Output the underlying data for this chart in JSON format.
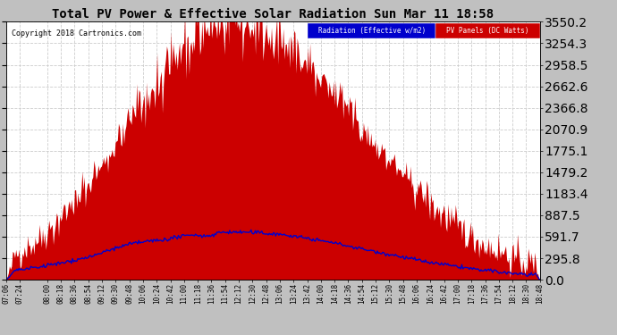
{
  "title": "Total PV Power & Effective Solar Radiation Sun Mar 11 18:58",
  "copyright": "Copyright 2018 Cartronics.com",
  "legend_radiation": "Radiation (Effective w/m2)",
  "legend_pv": "PV Panels (DC Watts)",
  "yticks": [
    0.0,
    295.8,
    591.7,
    887.5,
    1183.4,
    1479.2,
    1775.1,
    2070.9,
    2366.8,
    2662.6,
    2958.5,
    3254.3,
    3550.2
  ],
  "xtick_labels": [
    "07:06",
    "07:24",
    "08:00",
    "08:18",
    "08:36",
    "08:54",
    "09:12",
    "09:30",
    "09:48",
    "10:06",
    "10:24",
    "10:42",
    "11:00",
    "11:18",
    "11:36",
    "11:54",
    "12:12",
    "12:30",
    "12:48",
    "13:06",
    "13:24",
    "13:42",
    "14:00",
    "14:18",
    "14:36",
    "14:54",
    "15:12",
    "15:30",
    "15:48",
    "16:06",
    "16:24",
    "16:42",
    "17:00",
    "17:18",
    "17:36",
    "17:54",
    "18:12",
    "18:30",
    "18:48"
  ],
  "background_color": "#c0c0c0",
  "plot_bg_color": "#ffffff",
  "grid_color": "#cccccc",
  "title_color": "black",
  "radiation_color": "#0000cc",
  "pv_fill_color": "#cc0000",
  "radiation_legend_bg": "#0000cc",
  "pv_legend_bg": "#cc0000",
  "ymax": 3550.2,
  "ymin": 0.0
}
